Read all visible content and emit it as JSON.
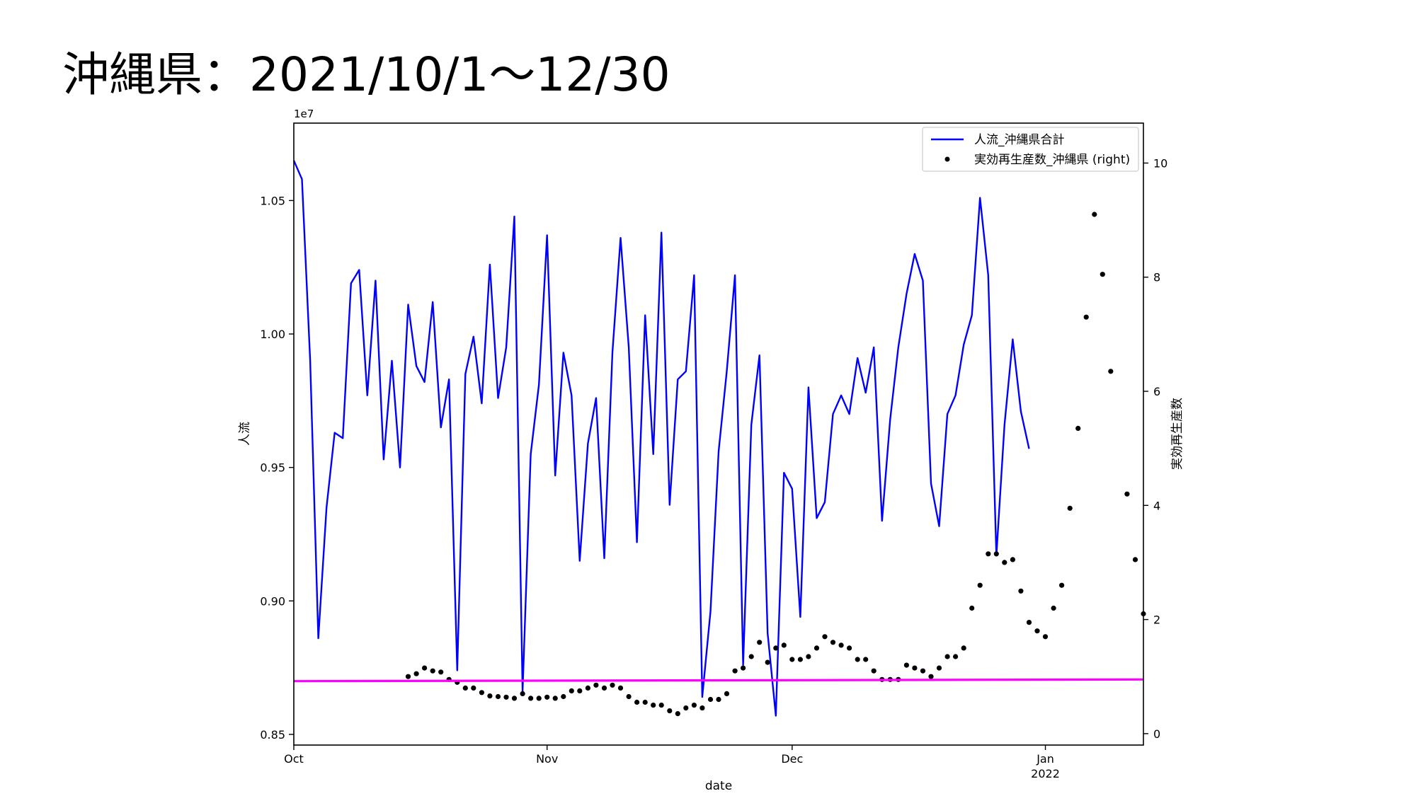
{
  "slide": {
    "title": "沖縄県：2021/10/1～12/30"
  },
  "chart_data": {
    "type": "line",
    "xlabel": "date",
    "ylabel_left": "人流",
    "ylabel_right": "実効再生産数",
    "left_offset_label": "1e7",
    "ylim_left": [
      0.846,
      1.079
    ],
    "ylim_right": [
      -0.2,
      10.7
    ],
    "xlim_days": [
      0,
      104
    ],
    "x_ticks": [
      {
        "day": 0,
        "label": "Oct"
      },
      {
        "day": 31,
        "label": "Nov"
      },
      {
        "day": 61,
        "label": "Dec"
      },
      {
        "day": 92,
        "label": "Jan",
        "sublabel": "2022"
      }
    ],
    "y_ticks_left": [
      {
        "v": 0.85,
        "label": "0.85"
      },
      {
        "v": 0.9,
        "label": "0.90"
      },
      {
        "v": 0.95,
        "label": "0.95"
      },
      {
        "v": 1.0,
        "label": "1.00"
      },
      {
        "v": 1.05,
        "label": "1.05"
      }
    ],
    "y_ticks_right": [
      {
        "v": 0,
        "label": "0"
      },
      {
        "v": 2,
        "label": "2"
      },
      {
        "v": 4,
        "label": "4"
      },
      {
        "v": 6,
        "label": "6"
      },
      {
        "v": 8,
        "label": "8"
      },
      {
        "v": 10,
        "label": "10"
      }
    ],
    "legend": {
      "placement": "upper-right",
      "entries": [
        "人流_沖縄県合計",
        "実効再生産数_沖縄県 (right)"
      ]
    },
    "series": [
      {
        "name": "人流_沖縄県合計",
        "axis": "left",
        "style": "line",
        "color": "#0000ff",
        "x_start_day": 0,
        "values": [
          1.065,
          1.058,
          0.99,
          0.886,
          0.935,
          0.963,
          0.961,
          1.019,
          1.024,
          0.977,
          1.02,
          0.953,
          0.99,
          0.95,
          1.011,
          0.988,
          0.982,
          1.012,
          0.965,
          0.983,
          0.874,
          0.985,
          0.999,
          0.974,
          1.026,
          0.976,
          0.995,
          1.044,
          0.866,
          0.955,
          0.981,
          1.037,
          0.947,
          0.993,
          0.977,
          0.915,
          0.959,
          0.976,
          0.916,
          0.993,
          1.036,
          0.995,
          0.922,
          1.007,
          0.955,
          1.038,
          0.936,
          0.983,
          0.986,
          1.022,
          0.864,
          0.896,
          0.956,
          0.986,
          1.022,
          0.876,
          0.966,
          0.992,
          0.888,
          0.857,
          0.948,
          0.942,
          0.894,
          0.98,
          0.931,
          0.937,
          0.97,
          0.977,
          0.97,
          0.991,
          0.978,
          0.995,
          0.93,
          0.968,
          0.995,
          1.015,
          1.03,
          1.02,
          0.944,
          0.928,
          0.97,
          0.977,
          0.996,
          1.007,
          1.051,
          1.022,
          0.917,
          0.966,
          0.998,
          0.971,
          0.957
        ]
      },
      {
        "name": "実効再生産数_沖縄県 (right)",
        "axis": "right",
        "style": "dots",
        "color": "#000000",
        "x_start_day": 14,
        "values": [
          1.0,
          1.05,
          1.15,
          1.1,
          1.08,
          0.95,
          0.9,
          0.8,
          0.8,
          0.72,
          0.66,
          0.65,
          0.64,
          0.62,
          0.7,
          0.62,
          0.62,
          0.64,
          0.62,
          0.65,
          0.75,
          0.75,
          0.8,
          0.85,
          0.8,
          0.85,
          0.8,
          0.65,
          0.55,
          0.55,
          0.5,
          0.5,
          0.4,
          0.35,
          0.45,
          0.5,
          0.45,
          0.6,
          0.6,
          0.7,
          1.1,
          1.15,
          1.35,
          1.6,
          1.25,
          1.5,
          1.55,
          1.3,
          1.3,
          1.35,
          1.5,
          1.7,
          1.6,
          1.55,
          1.5,
          1.3,
          1.3,
          1.1,
          0.95,
          0.95,
          0.95,
          1.2,
          1.15,
          1.1,
          1.0,
          1.15,
          1.35,
          1.35,
          1.5,
          2.2,
          2.6,
          3.15,
          3.15,
          3.0,
          3.05,
          2.5,
          1.95,
          1.8,
          1.7,
          2.2,
          2.6,
          3.95,
          5.35,
          7.3,
          9.1,
          8.05,
          6.35,
          10.0,
          4.2,
          3.05,
          2.1
        ]
      },
      {
        "name": "",
        "axis": "right",
        "style": "line",
        "color": "#ff00ff",
        "x": [
          0,
          104
        ],
        "values": [
          0.92,
          0.95
        ]
      }
    ]
  }
}
